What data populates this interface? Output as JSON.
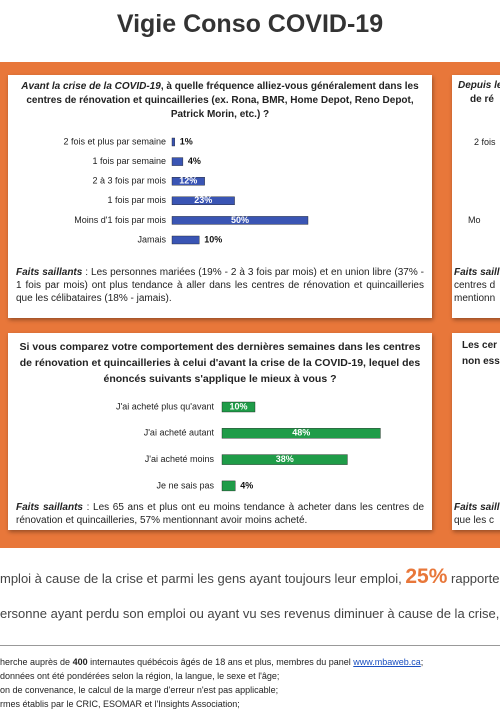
{
  "header": {
    "title": "Vigie Conso COVID-19"
  },
  "chart_data": [
    {
      "type": "bar",
      "orientation": "horizontal",
      "title": [
        "Avant la crise de la COVID-19",
        ", à quelle fréquence alliez-vous généralement dans les centres de rénovation et quincailleries (ex. Rona, BMR, Home Depot, Reno Depot, Patrick Morin, etc.) ?"
      ],
      "categories": [
        "2 fois et plus par semaine",
        "1 fois par semaine",
        "2 à 3 fois par mois",
        "1 fois par mois",
        "Moins d'1 fois par mois",
        "Jamais"
      ],
      "values": [
        1,
        4,
        12,
        23,
        50,
        10
      ],
      "value_labels": [
        "1%",
        "4%",
        "12%",
        "23%",
        "50%",
        "10%"
      ],
      "color": "#3a55b4",
      "note": [
        "Faits saillants",
        " : Les personnes mariées (19% - 2 à 3 fois par mois) et en union libre (37% - 1 fois par mois) ont plus tendance à aller dans les centres de rénovation et quincailleries que les célibataires (18% - jamais)."
      ]
    },
    {
      "type": "bar",
      "orientation": "horizontal",
      "title": [
        "Si vous comparez votre comportement des dernières semaines dans les centres de rénovation et quincailleries à celui d'avant la crise de la COVID-19, lequel des énoncés suivants s'applique le mieux à vous ?"
      ],
      "categories": [
        "J'ai acheté plus qu'avant",
        "J'ai acheté autant",
        "J'ai acheté moins",
        "Je ne sais pas"
      ],
      "values": [
        10,
        48,
        38,
        4
      ],
      "value_labels": [
        "10%",
        "48%",
        "38%",
        "4%"
      ],
      "color": "#1f9c48",
      "note": [
        "Faits saillants",
        " : Les 65 ans et plus ont eu moins tendance à acheter dans les centres de rénovation et quincailleries, 57% mentionnant avoir moins acheté."
      ]
    }
  ],
  "side_panels": [
    {
      "lines": [
        "Depuis le",
        "de ré",
        "2 fois",
        "Mo",
        "Faits saill",
        "centres d",
        "mentionn"
      ]
    },
    {
      "lines": [
        "Les cer",
        "non ess",
        "Faits saill",
        "que les c"
      ]
    }
  ],
  "text": {
    "line1": [
      "mploi à cause de la crise et parmi les gens ayant toujours leur emploi, ",
      "25%",
      " rapporter"
    ],
    "line2": "ersonne ayant perdu son emploi ou ayant vu ses revenus diminuer à cause de la crise,"
  },
  "footnotes": [
    [
      "herche auprès de ",
      "400",
      " internautes québécois âgés de 18 ans et plus, membres du panel ",
      "www.mbaweb.ca",
      ";"
    ],
    [
      "données ont été pondérées selon la région, la langue, le sexe et l'âge;"
    ],
    [
      "on de convenance, le calcul de la marge d'erreur n'est pas applicable;"
    ],
    [
      "rmes établis par le CRIC, ESOMAR et l'Insights Association;"
    ]
  ]
}
